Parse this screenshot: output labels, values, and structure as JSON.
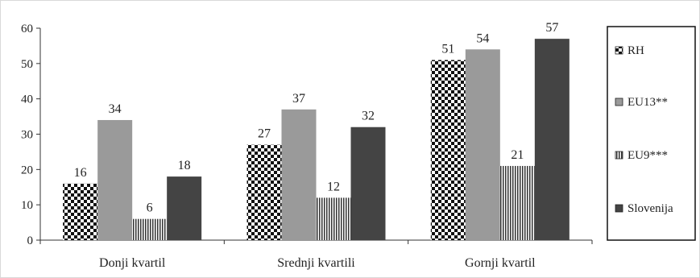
{
  "chart_data": {
    "type": "bar",
    "categories": [
      "Donji kvartil",
      "Srednji kvartili",
      "Gornji kvartil"
    ],
    "series": [
      {
        "name": "RH",
        "values": [
          16,
          27,
          51
        ],
        "pattern": "checker",
        "color": "#111111"
      },
      {
        "name": "EU13**",
        "values": [
          34,
          37,
          54
        ],
        "pattern": "solid",
        "color": "#9a9a9a"
      },
      {
        "name": "EU9***",
        "values": [
          6,
          12,
          21
        ],
        "pattern": "vstripes",
        "color": "#333333"
      },
      {
        "name": "Slovenija",
        "values": [
          18,
          32,
          57
        ],
        "pattern": "solid",
        "color": "#444444"
      }
    ],
    "ylim": [
      0,
      60
    ],
    "yticks": [
      0,
      10,
      20,
      30,
      40,
      50,
      60
    ],
    "grid": false,
    "legend": "right",
    "data_labels": true
  }
}
